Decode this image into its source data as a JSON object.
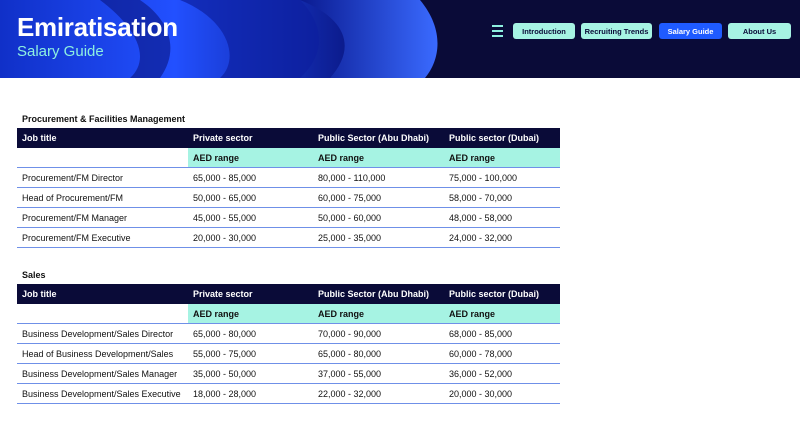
{
  "header": {
    "title": "Emiratisation",
    "subtitle": "Salary Guide",
    "nav": [
      "Introduction",
      "Recruiting Trends",
      "Salary Guide",
      "About Us"
    ],
    "active_nav": 2
  },
  "sections": [
    {
      "heading": "Procurement & Facilities Management",
      "columns": [
        "Job title",
        "Private sector",
        "Public Sector (Abu Dhabi)",
        "Public sector (Dubai)"
      ],
      "subheader": [
        "AED range",
        "AED range",
        "AED range"
      ],
      "rows": [
        [
          "Procurement/FM Director",
          "65,000 - 85,000",
          "80,000 - 110,000",
          "75,000 - 100,000"
        ],
        [
          "Head of Procurement/FM",
          "50,000 - 65,000",
          "60,000 - 75,000",
          "58,000 - 70,000"
        ],
        [
          "Procurement/FM Manager",
          "45,000 - 55,000",
          "50,000 - 60,000",
          "48,000 - 58,000"
        ],
        [
          "Procurement/FM Executive",
          "20,000 - 30,000",
          "25,000 - 35,000",
          "24,000 - 32,000"
        ]
      ]
    },
    {
      "heading": "Sales",
      "columns": [
        "Job title",
        "Private sector",
        "Public Sector (Abu Dhabi)",
        "Public sector (Dubai)"
      ],
      "subheader": [
        "AED range",
        "AED range",
        "AED range"
      ],
      "rows": [
        [
          "Business Development/Sales Director",
          "65,000 - 80,000",
          "70,000 - 90,000",
          "68,000 - 85,000"
        ],
        [
          "Head of Business Development/Sales",
          "55,000 - 75,000",
          "65,000 - 80,000",
          "60,000 - 78,000"
        ],
        [
          "Business Development/Sales Manager",
          "35,000 - 50,000",
          "37,000 - 55,000",
          "36,000 - 52,000"
        ],
        [
          "Business Development/Sales Executive",
          "18,000 - 28,000",
          "22,000 - 32,000",
          "20,000 - 30,000"
        ]
      ]
    }
  ]
}
